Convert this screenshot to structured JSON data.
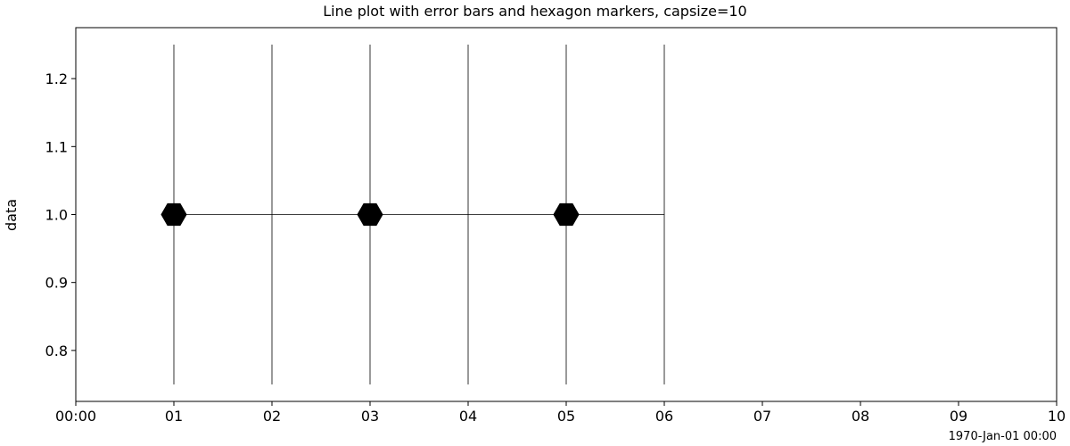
{
  "chart_data": {
    "type": "line",
    "title": "Line plot with error bars and hexagon markers, capsize=10",
    "xlabel": "",
    "ylabel": "data",
    "x_offset_label": "1970-Jan-01 00:00",
    "x_ticks": [
      "00:00",
      "01",
      "02",
      "03",
      "04",
      "05",
      "06",
      "07",
      "08",
      "09",
      "10"
    ],
    "y_ticks": [
      "0.8",
      "0.9",
      "1.0",
      "1.1",
      "1.2"
    ],
    "xlim": [
      0,
      10
    ],
    "ylim": [
      0.725,
      1.275
    ],
    "grid": false,
    "series": [
      {
        "x": [
          1,
          2,
          3,
          4,
          5,
          6
        ],
        "y": [
          1.0,
          1.0,
          1.0,
          1.0,
          1.0,
          1.0
        ],
        "yerr": [
          0.25,
          0.25,
          0.25,
          0.25,
          0.25,
          0.25
        ],
        "marker": "hexagon",
        "markevery": 2,
        "color": "#000000"
      }
    ]
  }
}
